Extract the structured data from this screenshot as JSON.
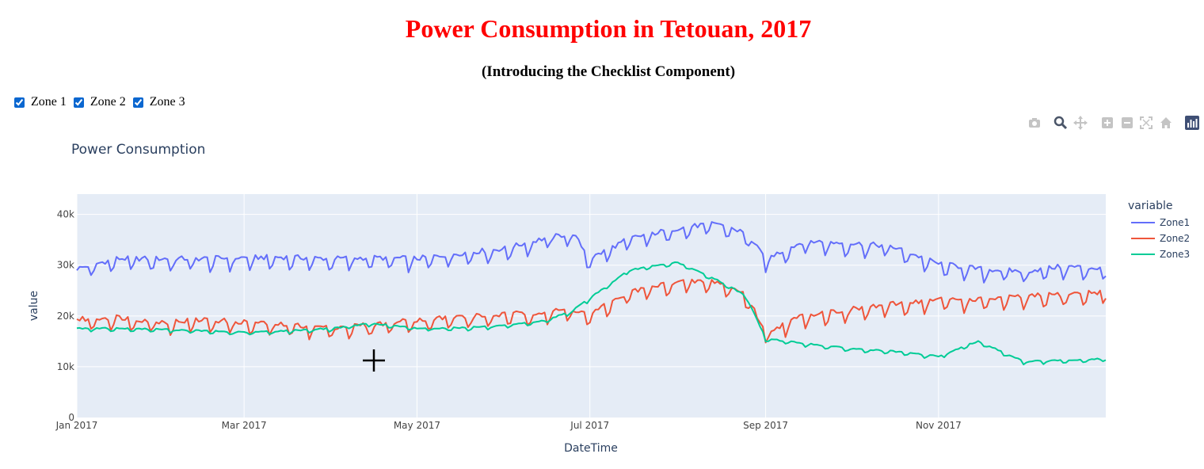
{
  "page": {
    "title": "Power Consumption in Tetouan, 2017",
    "subtitle": "(Introducing the Checklist Component)"
  },
  "checklist": [
    {
      "label": "Zone 1",
      "checked": true
    },
    {
      "label": "Zone 2",
      "checked": true
    },
    {
      "label": "Zone 3",
      "checked": true
    }
  ],
  "modebar": {
    "icons": [
      "camera-icon",
      "zoom-icon",
      "pan-icon",
      "zoom-in-icon",
      "zoom-out-icon",
      "autoscale-icon",
      "reset-axes-icon",
      "plotly-logo-icon"
    ]
  },
  "chart_data": {
    "type": "line",
    "title": "Power Consumption",
    "xlabel": "DateTime",
    "ylabel": "value",
    "xlim": [
      "2017-01-01",
      "2017-12-30"
    ],
    "ylim": [
      0,
      44000
    ],
    "xticks": [
      {
        "label": "Jan 2017",
        "date": "2017-01-01"
      },
      {
        "label": "Mar 2017",
        "date": "2017-03-01"
      },
      {
        "label": "May 2017",
        "date": "2017-05-01"
      },
      {
        "label": "Jul 2017",
        "date": "2017-07-01"
      },
      {
        "label": "Sep 2017",
        "date": "2017-09-01"
      },
      {
        "label": "Nov 2017",
        "date": "2017-11-01"
      }
    ],
    "yticks": [
      {
        "label": "0",
        "value": 0
      },
      {
        "label": "10k",
        "value": 10000
      },
      {
        "label": "20k",
        "value": 20000
      },
      {
        "label": "30k",
        "value": 30000
      },
      {
        "label": "40k",
        "value": 40000
      }
    ],
    "legend_title": "variable",
    "legend_position": "right",
    "grid": true,
    "series": [
      {
        "name": "Zone1",
        "color": "#636efa",
        "dates": [
          "2017-01-01",
          "2017-01-15",
          "2017-02-01",
          "2017-02-15",
          "2017-03-01",
          "2017-03-15",
          "2017-04-01",
          "2017-04-15",
          "2017-05-01",
          "2017-05-15",
          "2017-06-01",
          "2017-06-15",
          "2017-06-25",
          "2017-07-01",
          "2017-07-15",
          "2017-08-01",
          "2017-08-15",
          "2017-08-25",
          "2017-09-01",
          "2017-09-15",
          "2017-10-01",
          "2017-10-15",
          "2017-11-01",
          "2017-11-15",
          "2017-12-01",
          "2017-12-15",
          "2017-12-30"
        ],
        "values": [
          29000,
          31000,
          31000,
          31000,
          31200,
          31300,
          31000,
          31200,
          31000,
          32000,
          33000,
          35000,
          36000,
          31000,
          35000,
          37000,
          38000,
          36000,
          31000,
          34500,
          34000,
          33500,
          30000,
          29000,
          28500,
          29500,
          29000
        ]
      },
      {
        "name": "Zone2",
        "color": "#ef553b",
        "dates": [
          "2017-01-01",
          "2017-01-15",
          "2017-02-01",
          "2017-02-15",
          "2017-03-01",
          "2017-03-15",
          "2017-04-01",
          "2017-04-15",
          "2017-05-01",
          "2017-05-15",
          "2017-06-01",
          "2017-06-15",
          "2017-06-25",
          "2017-07-01",
          "2017-07-15",
          "2017-08-01",
          "2017-08-15",
          "2017-08-25",
          "2017-09-01",
          "2017-09-15",
          "2017-10-01",
          "2017-10-15",
          "2017-11-01",
          "2017-11-15",
          "2017-12-01",
          "2017-12-15",
          "2017-12-30"
        ],
        "values": [
          19000,
          19500,
          18500,
          19000,
          18500,
          18000,
          17500,
          18000,
          19000,
          19500,
          20000,
          20500,
          21000,
          20000,
          24500,
          26500,
          26500,
          24000,
          16500,
          20000,
          21000,
          22000,
          23000,
          23000,
          23500,
          24000,
          24500
        ]
      },
      {
        "name": "Zone3",
        "color": "#00cc96",
        "dates": [
          "2017-01-01",
          "2017-01-15",
          "2017-02-01",
          "2017-02-15",
          "2017-03-01",
          "2017-03-15",
          "2017-04-01",
          "2017-04-15",
          "2017-05-01",
          "2017-05-15",
          "2017-06-01",
          "2017-06-15",
          "2017-06-25",
          "2017-07-01",
          "2017-07-15",
          "2017-08-01",
          "2017-08-15",
          "2017-08-25",
          "2017-09-01",
          "2017-09-15",
          "2017-10-01",
          "2017-10-15",
          "2017-11-01",
          "2017-11-15",
          "2017-12-01",
          "2017-12-15",
          "2017-12-30"
        ],
        "values": [
          17500,
          17500,
          17300,
          17000,
          16700,
          17000,
          17500,
          18500,
          17500,
          17600,
          18000,
          19000,
          21000,
          23500,
          29000,
          30500,
          27000,
          24000,
          15500,
          14500,
          13500,
          13000,
          12000,
          15000,
          11000,
          11200,
          11500
        ]
      }
    ]
  }
}
